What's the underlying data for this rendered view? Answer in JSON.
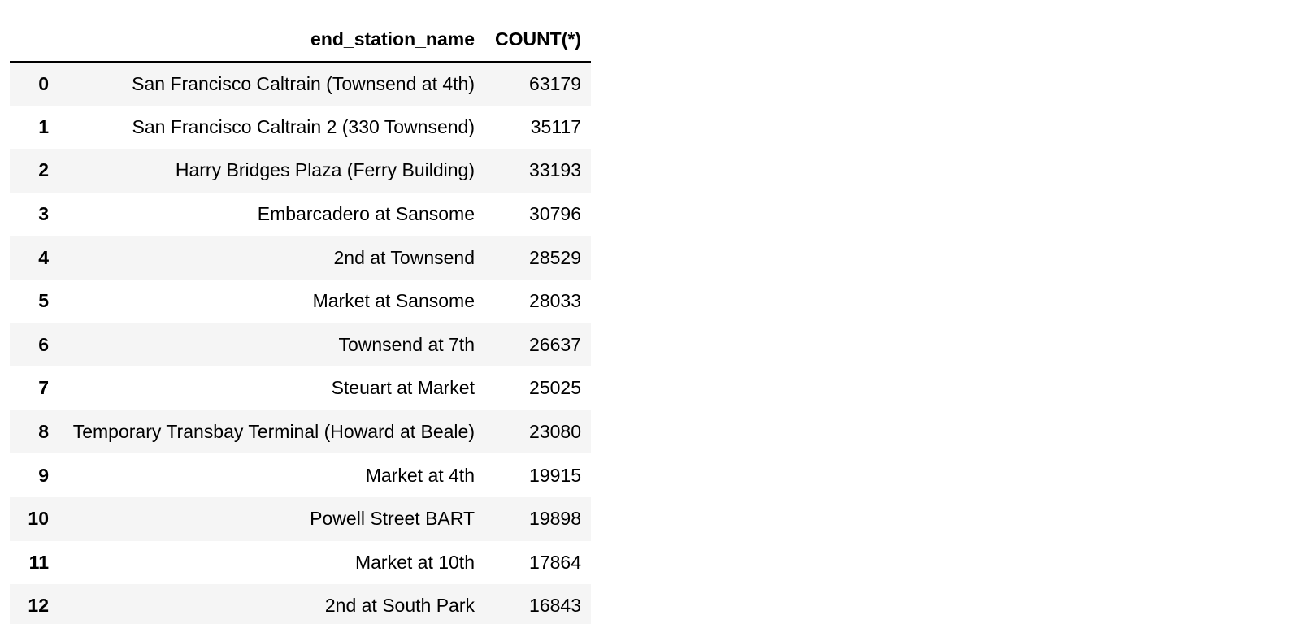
{
  "table": {
    "columns": [
      "",
      "end_station_name",
      "COUNT(*)"
    ],
    "rows": [
      {
        "index": "0",
        "end_station_name": "San Francisco Caltrain (Townsend at 4th)",
        "count": "63179"
      },
      {
        "index": "1",
        "end_station_name": "San Francisco Caltrain 2 (330 Townsend)",
        "count": "35117"
      },
      {
        "index": "2",
        "end_station_name": "Harry Bridges Plaza (Ferry Building)",
        "count": "33193"
      },
      {
        "index": "3",
        "end_station_name": "Embarcadero at Sansome",
        "count": "30796"
      },
      {
        "index": "4",
        "end_station_name": "2nd at Townsend",
        "count": "28529"
      },
      {
        "index": "5",
        "end_station_name": "Market at Sansome",
        "count": "28033"
      },
      {
        "index": "6",
        "end_station_name": "Townsend at 7th",
        "count": "26637"
      },
      {
        "index": "7",
        "end_station_name": "Steuart at Market",
        "count": "25025"
      },
      {
        "index": "8",
        "end_station_name": "Temporary Transbay Terminal (Howard at Beale)",
        "count": "23080"
      },
      {
        "index": "9",
        "end_station_name": "Market at 4th",
        "count": "19915"
      },
      {
        "index": "10",
        "end_station_name": "Powell Street BART",
        "count": "19898"
      },
      {
        "index": "11",
        "end_station_name": "Market at 10th",
        "count": "17864"
      },
      {
        "index": "12",
        "end_station_name": "2nd at South Park",
        "count": "16843"
      }
    ]
  }
}
